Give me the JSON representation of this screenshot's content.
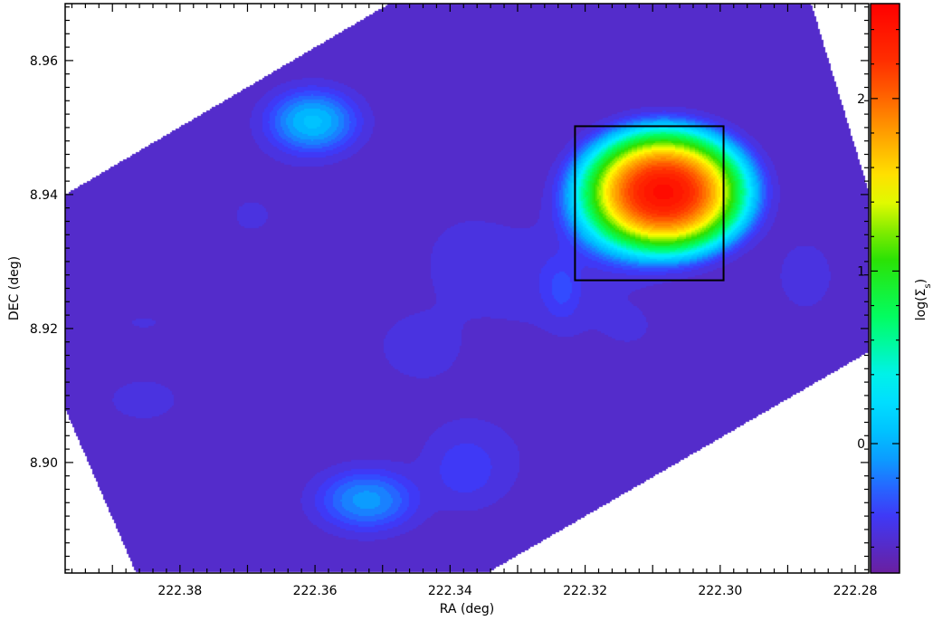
{
  "chart_data": {
    "type": "heatmap",
    "xlabel": "RA (deg)",
    "ylabel": "DEC (deg)",
    "xlim": [
      222.397,
      222.278
    ],
    "ylim": [
      8.8835,
      8.9685
    ],
    "x_ticks": [
      "222.38",
      "222.36",
      "222.34",
      "222.32",
      "222.30",
      "222.28"
    ],
    "x_tick_values": [
      222.38,
      222.36,
      222.34,
      222.32,
      222.3,
      222.28
    ],
    "y_ticks": [
      "8.90",
      "8.92",
      "8.94",
      "8.96"
    ],
    "y_tick_values": [
      8.9,
      8.92,
      8.94,
      8.96
    ],
    "colorbar": {
      "label": "log(Σs)",
      "label_main": "log(Σ",
      "label_sub": "s",
      "label_close": ")",
      "range": [
        -0.75,
        2.55
      ],
      "ticks": [
        "0",
        "1",
        "2"
      ],
      "tick_values": [
        0,
        1,
        2
      ],
      "colormap": [
        "#6a1fa0",
        "#3a3cff",
        "#00b4ff",
        "#00f0ff",
        "#00ff66",
        "#2de000",
        "#ffff00",
        "#ff9900",
        "#ff3300",
        "#ff0000"
      ]
    },
    "footprint_polygon_radec": [
      [
        222.397,
        8.94
      ],
      [
        222.349,
        8.9685
      ],
      [
        222.332,
        8.9685
      ],
      [
        222.2865,
        8.9685
      ],
      [
        222.278,
        8.9405
      ],
      [
        222.278,
        8.9165
      ],
      [
        222.3345,
        8.8835
      ],
      [
        222.3865,
        8.8835
      ],
      [
        222.397,
        8.908
      ]
    ],
    "background_level": -0.55,
    "sources": [
      {
        "ra": 222.3085,
        "dec": 8.9405,
        "peak": 2.5,
        "sigma_ra": 0.004,
        "sigma_dec": 0.003
      },
      {
        "ra": 222.3145,
        "dec": 8.9375,
        "peak": 0.3,
        "sigma_ra": 0.004,
        "sigma_dec": 0.0035
      },
      {
        "ra": 222.3605,
        "dec": 8.951,
        "peak": 0.1,
        "sigma_ra": 0.0035,
        "sigma_dec": 0.0025
      },
      {
        "ra": 222.3525,
        "dec": 8.8945,
        "peak": -0.05,
        "sigma_ra": 0.004,
        "sigma_dec": 0.0025
      },
      {
        "ra": 222.3235,
        "dec": 8.926,
        "peak": -0.35,
        "sigma_ra": 0.0018,
        "sigma_dec": 0.003
      },
      {
        "ra": 222.3375,
        "dec": 8.9305,
        "peak": -0.45,
        "sigma_ra": 0.004,
        "sigma_dec": 0.004
      },
      {
        "ra": 222.338,
        "dec": 8.899,
        "peak": -0.4,
        "sigma_ra": 0.003,
        "sigma_dec": 0.003
      },
      {
        "ra": 222.328,
        "dec": 8.928,
        "peak": -0.45,
        "sigma_ra": 0.006,
        "sigma_dec": 0.005
      },
      {
        "ra": 222.3695,
        "dec": 8.937,
        "peak": -0.5,
        "sigma_ra": 0.007,
        "sigma_dec": 0.006
      },
      {
        "ra": 222.3445,
        "dec": 8.9175,
        "peak": -0.48,
        "sigma_ra": 0.006,
        "sigma_dec": 0.005
      },
      {
        "ra": 222.3855,
        "dec": 8.9095,
        "peak": -0.48,
        "sigma_ra": 0.005,
        "sigma_dec": 0.003
      },
      {
        "ra": 222.3855,
        "dec": 8.921,
        "peak": -0.5,
        "sigma_ra": 0.005,
        "sigma_dec": 0.002
      },
      {
        "ra": 222.2875,
        "dec": 8.928,
        "peak": -0.48,
        "sigma_ra": 0.004,
        "sigma_dec": 0.005
      },
      {
        "ra": 222.3365,
        "dec": 8.9005,
        "peak": -0.47,
        "sigma_ra": 0.006,
        "sigma_dec": 0.005
      },
      {
        "ra": 222.3135,
        "dec": 8.9205,
        "peak": -0.5,
        "sigma_ra": 0.007,
        "sigma_dec": 0.006
      }
    ],
    "box_radec": {
      "ra1": 222.3215,
      "ra2": 222.2995,
      "dec1": 8.9272,
      "dec2": 8.9502
    }
  }
}
